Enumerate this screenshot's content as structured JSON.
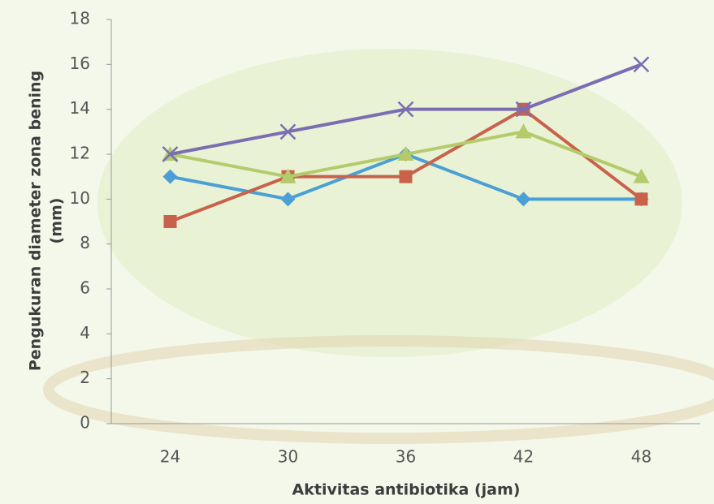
{
  "chart_data": {
    "type": "line",
    "y_label": [
      "Pengukuran diameter zona bening",
      "(mm)"
    ],
    "x_label": "Aktivitas antibiotika (jam)",
    "categories": [
      "24",
      "30",
      "36",
      "42",
      "48"
    ],
    "series": [
      {
        "color": "#4a9fd4",
        "marker": "diamond",
        "values": [
          11,
          10,
          12,
          10,
          10
        ]
      },
      {
        "color": "#c8624a",
        "marker": "square",
        "values": [
          9,
          11,
          11,
          14,
          10
        ]
      },
      {
        "color": "#b3cb6b",
        "marker": "triangle",
        "values": [
          12,
          11,
          12,
          13,
          11
        ]
      },
      {
        "color": "#7b6db2",
        "marker": "x",
        "values": [
          12,
          13,
          14,
          14,
          16
        ]
      }
    ],
    "ylim": [
      0,
      18
    ],
    "yticks": [
      0,
      2,
      4,
      6,
      8,
      10,
      12,
      14,
      16,
      18
    ],
    "grid": false
  }
}
